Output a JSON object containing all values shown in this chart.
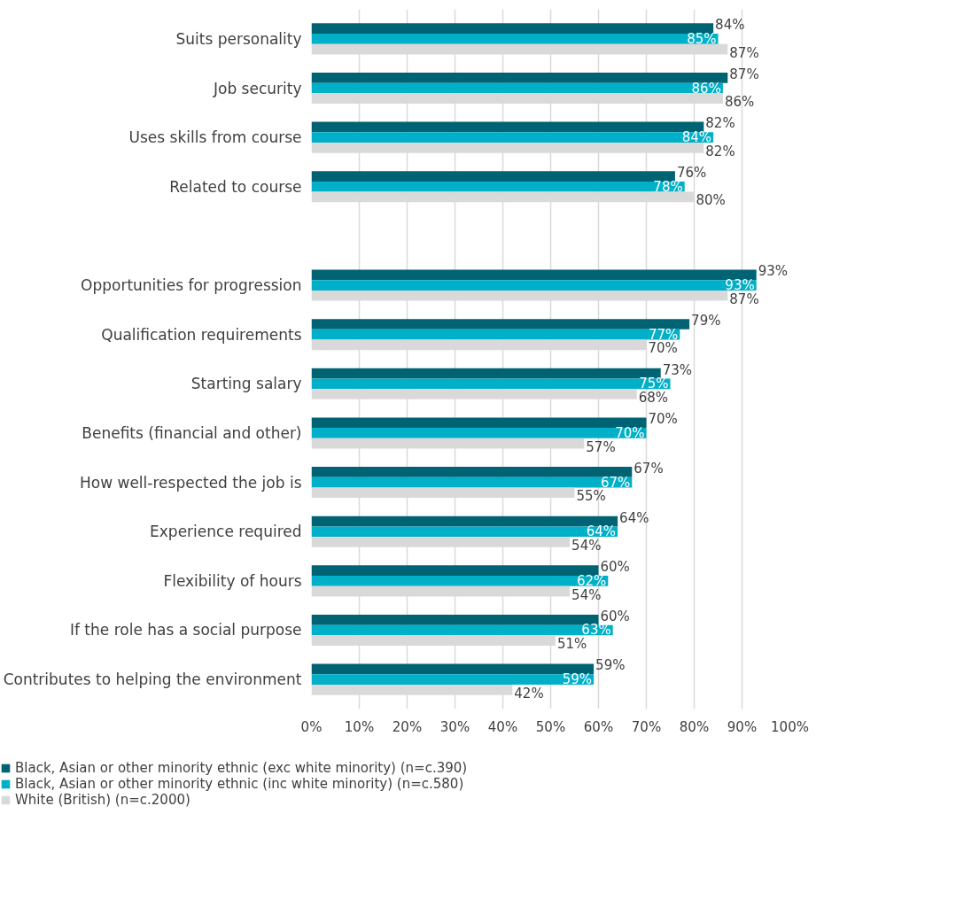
{
  "chart_data": {
    "type": "bar",
    "orientation": "horizontal",
    "categories": [
      "Suits personality",
      "Job security",
      "Uses skills from course",
      "Related to course",
      null,
      "Opportunities for progression",
      "Qualification requirements",
      "Starting salary",
      "Benefits (financial and other)",
      "How well-respected the job is",
      "Experience required",
      "Flexibility of hours",
      "If the role has a social purpose",
      "Contributes to helping the environment"
    ],
    "series": [
      {
        "name": "Black, Asian or other minority ethnic (exc white minority) (n=c.390)",
        "color": "#006373",
        "values": [
          84,
          87,
          82,
          76,
          null,
          93,
          79,
          73,
          70,
          67,
          64,
          60,
          60,
          59
        ],
        "value_labels": [
          "84%",
          "87%",
          "82%",
          "76%",
          null,
          "93%",
          "79%",
          "73%",
          "70%",
          "67%",
          "64%",
          "60%",
          "60%",
          "59%"
        ]
      },
      {
        "name": "Black, Asian or other minority ethnic (inc white minority) (n=c.580)",
        "color": "#00b0c8",
        "values": [
          85,
          86,
          84,
          78,
          null,
          93,
          77,
          75,
          70,
          67,
          64,
          62,
          63,
          59
        ],
        "value_labels": [
          "85%",
          "86%",
          "84%",
          "78%",
          null,
          "93%",
          "77%",
          "75%",
          "70%",
          "67%",
          "64%",
          "62%",
          "63%",
          "59%"
        ]
      },
      {
        "name": "White (British) (n=c.2000)",
        "color": "#d9d9d9",
        "values": [
          87,
          86,
          82,
          80,
          null,
          87,
          70,
          68,
          57,
          55,
          54,
          54,
          51,
          42
        ],
        "value_labels": [
          "87%",
          "86%",
          "82%",
          "80%",
          null,
          "87%",
          "70%",
          "68%",
          "57%",
          "55%",
          "54%",
          "54%",
          "51%",
          "42%"
        ]
      }
    ],
    "xlim": [
      0,
      100
    ],
    "xticks": [
      {
        "value": 0,
        "label": "0%"
      },
      {
        "value": 10,
        "label": "10%"
      },
      {
        "value": 20,
        "label": "20%"
      },
      {
        "value": 30,
        "label": "30%"
      },
      {
        "value": 40,
        "label": "40%"
      },
      {
        "value": 50,
        "label": "50%"
      },
      {
        "value": 60,
        "label": "60%"
      },
      {
        "value": 70,
        "label": "70%"
      },
      {
        "value": 80,
        "label": "80%"
      },
      {
        "value": 90,
        "label": "90%"
      },
      {
        "value": 100,
        "label": "100%"
      }
    ],
    "grid": "x",
    "legend": "bottom"
  }
}
